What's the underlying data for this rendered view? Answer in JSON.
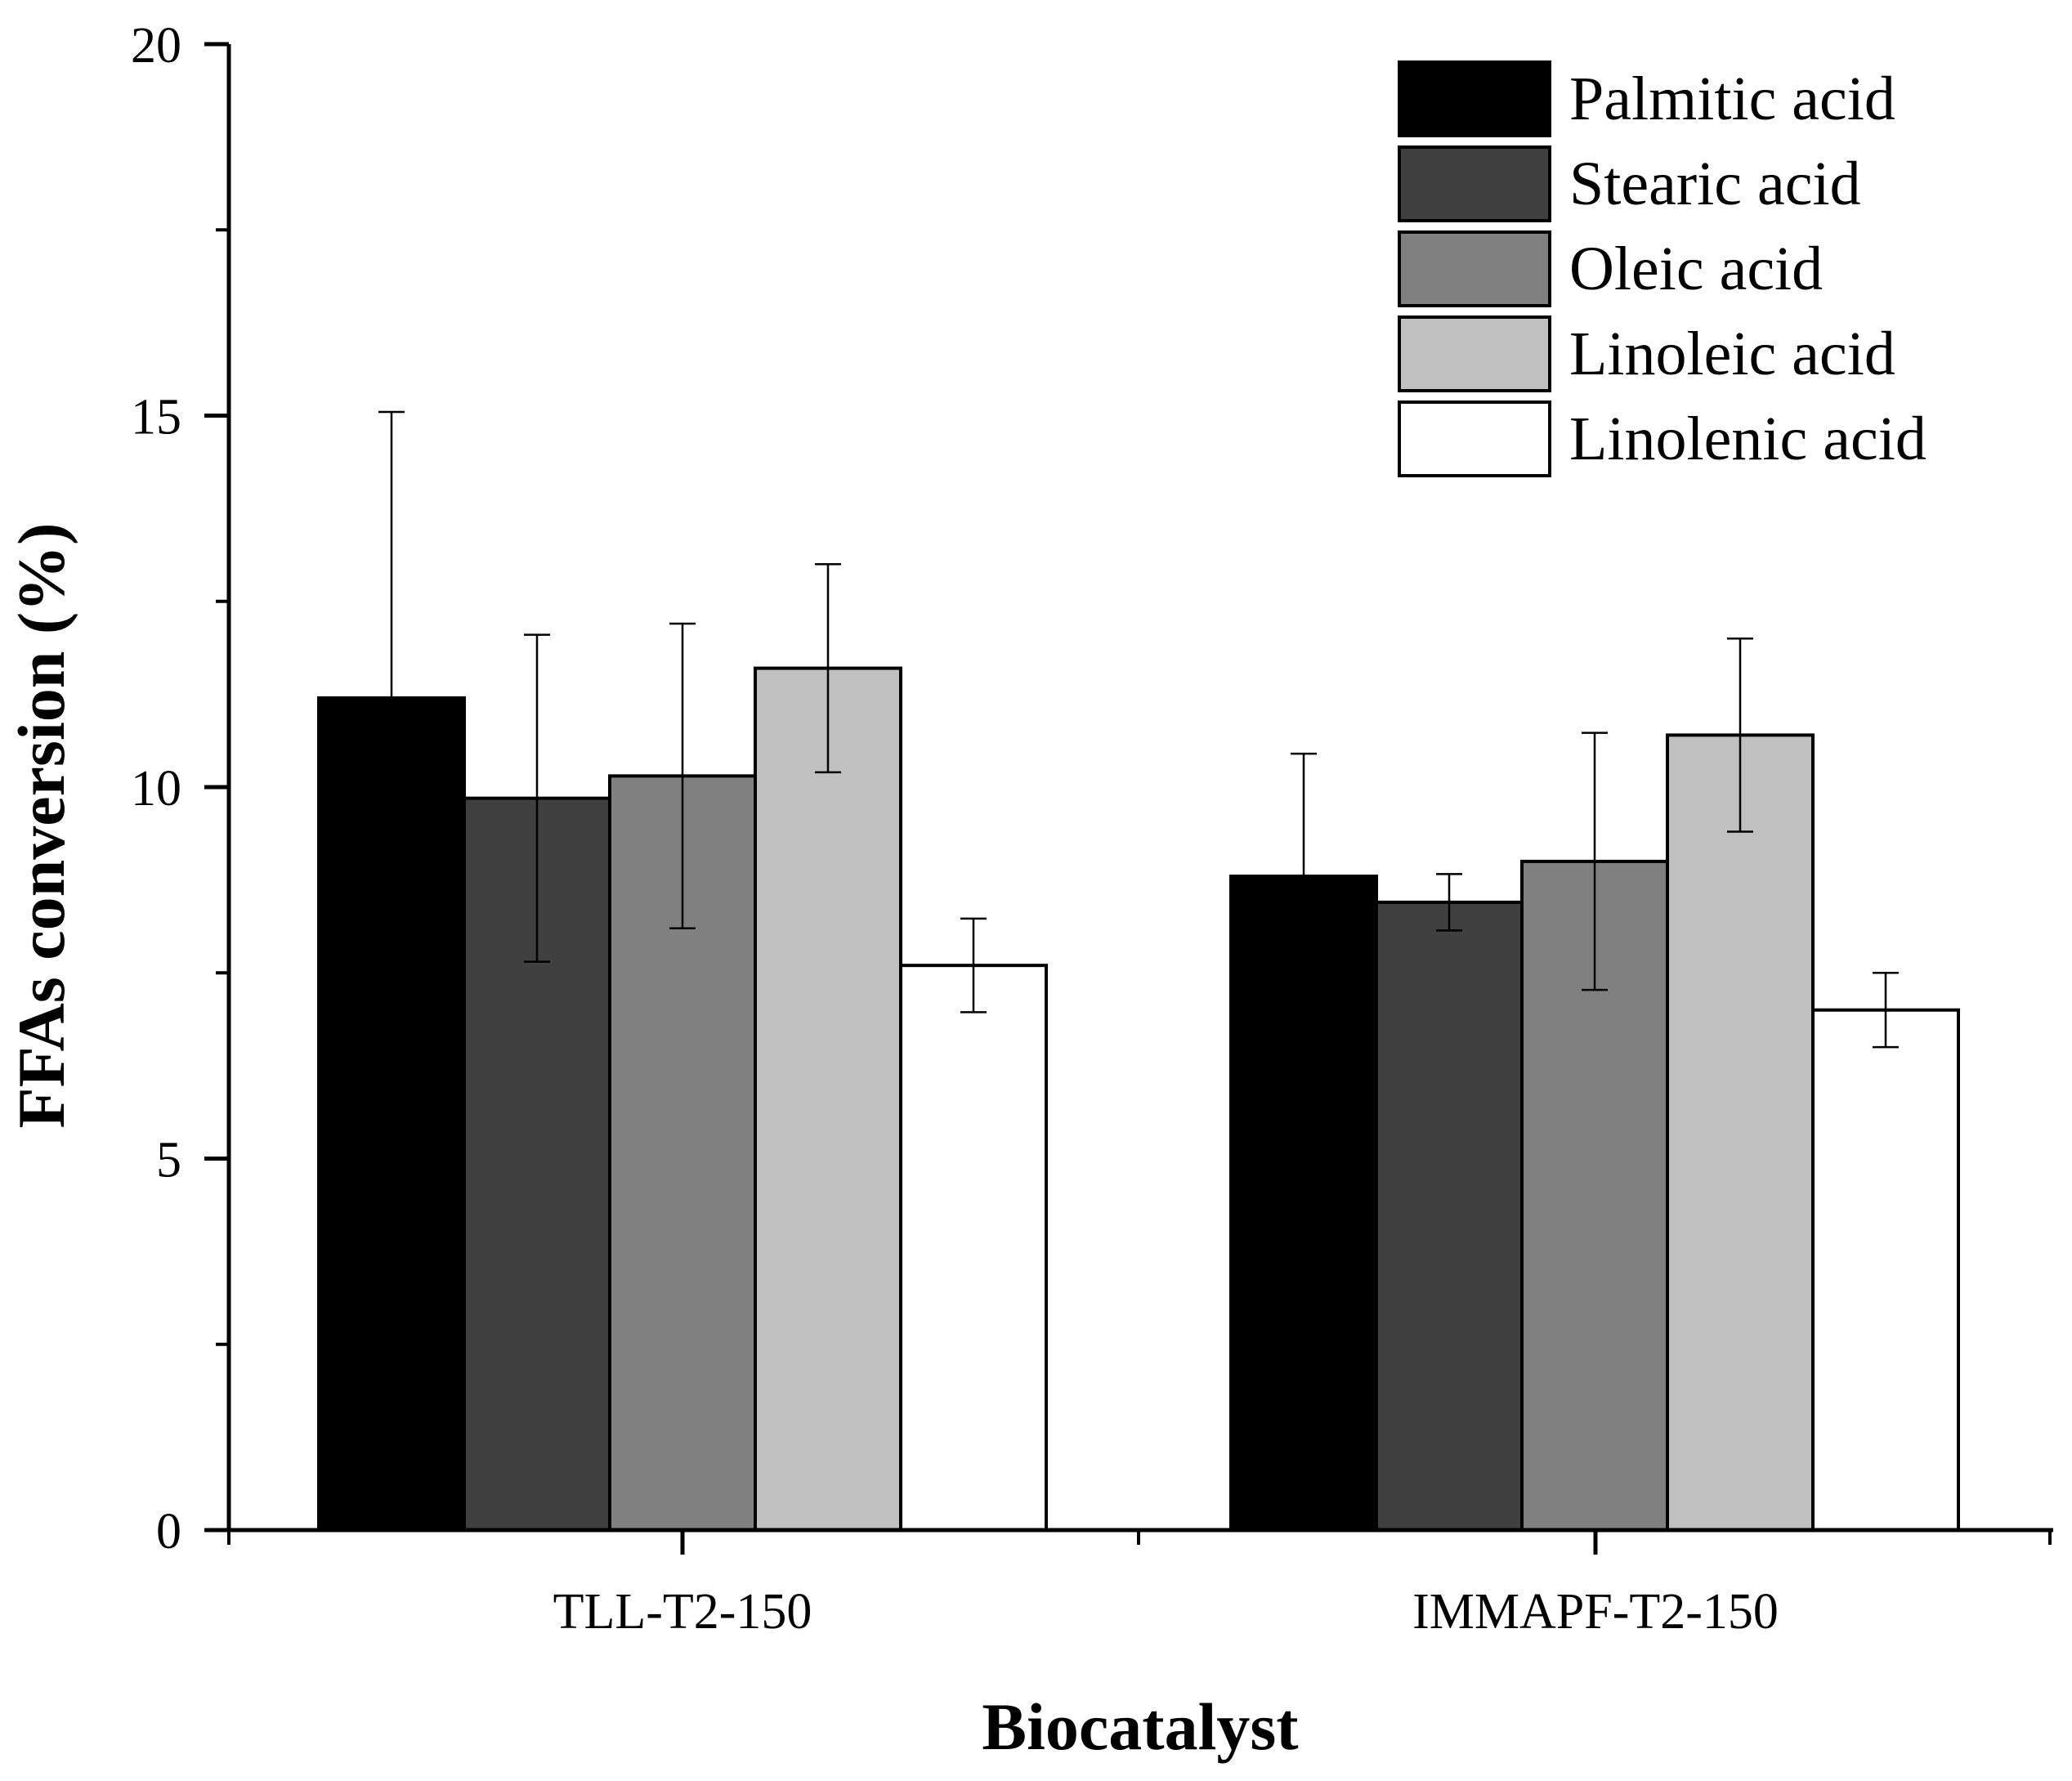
{
  "chart_data": {
    "type": "bar",
    "title": "",
    "xlabel": "Biocatalyst",
    "ylabel": "FFAs conversion (%)",
    "ylim": [
      0,
      20
    ],
    "yticks": [
      0,
      5,
      10,
      15,
      20
    ],
    "yticks_minor": [
      2.5,
      7.5,
      12.5,
      17.5
    ],
    "grid": false,
    "legend_position": "top-right",
    "categories": [
      "TLL-T2-150",
      "IMMAPF-T2-150"
    ],
    "series": [
      {
        "name": "Palmitic acid",
        "color": "#000000",
        "values": [
          11.2,
          8.8
        ],
        "errors": [
          3.85,
          1.65
        ]
      },
      {
        "name": "Stearic acid",
        "color": "#404040",
        "values": [
          9.85,
          8.45
        ],
        "errors": [
          2.2,
          0.38
        ]
      },
      {
        "name": "Oleic acid",
        "color": "#808080",
        "values": [
          10.15,
          9.0
        ],
        "errors": [
          2.05,
          1.73
        ]
      },
      {
        "name": "Linoleic acid",
        "color": "#c0c0c0",
        "values": [
          11.6,
          10.7
        ],
        "errors": [
          1.4,
          1.3
        ]
      },
      {
        "name": "Linolenic acid",
        "color": "#ffffff",
        "values": [
          7.6,
          7.0
        ],
        "errors": [
          0.63,
          0.5
        ]
      }
    ]
  }
}
